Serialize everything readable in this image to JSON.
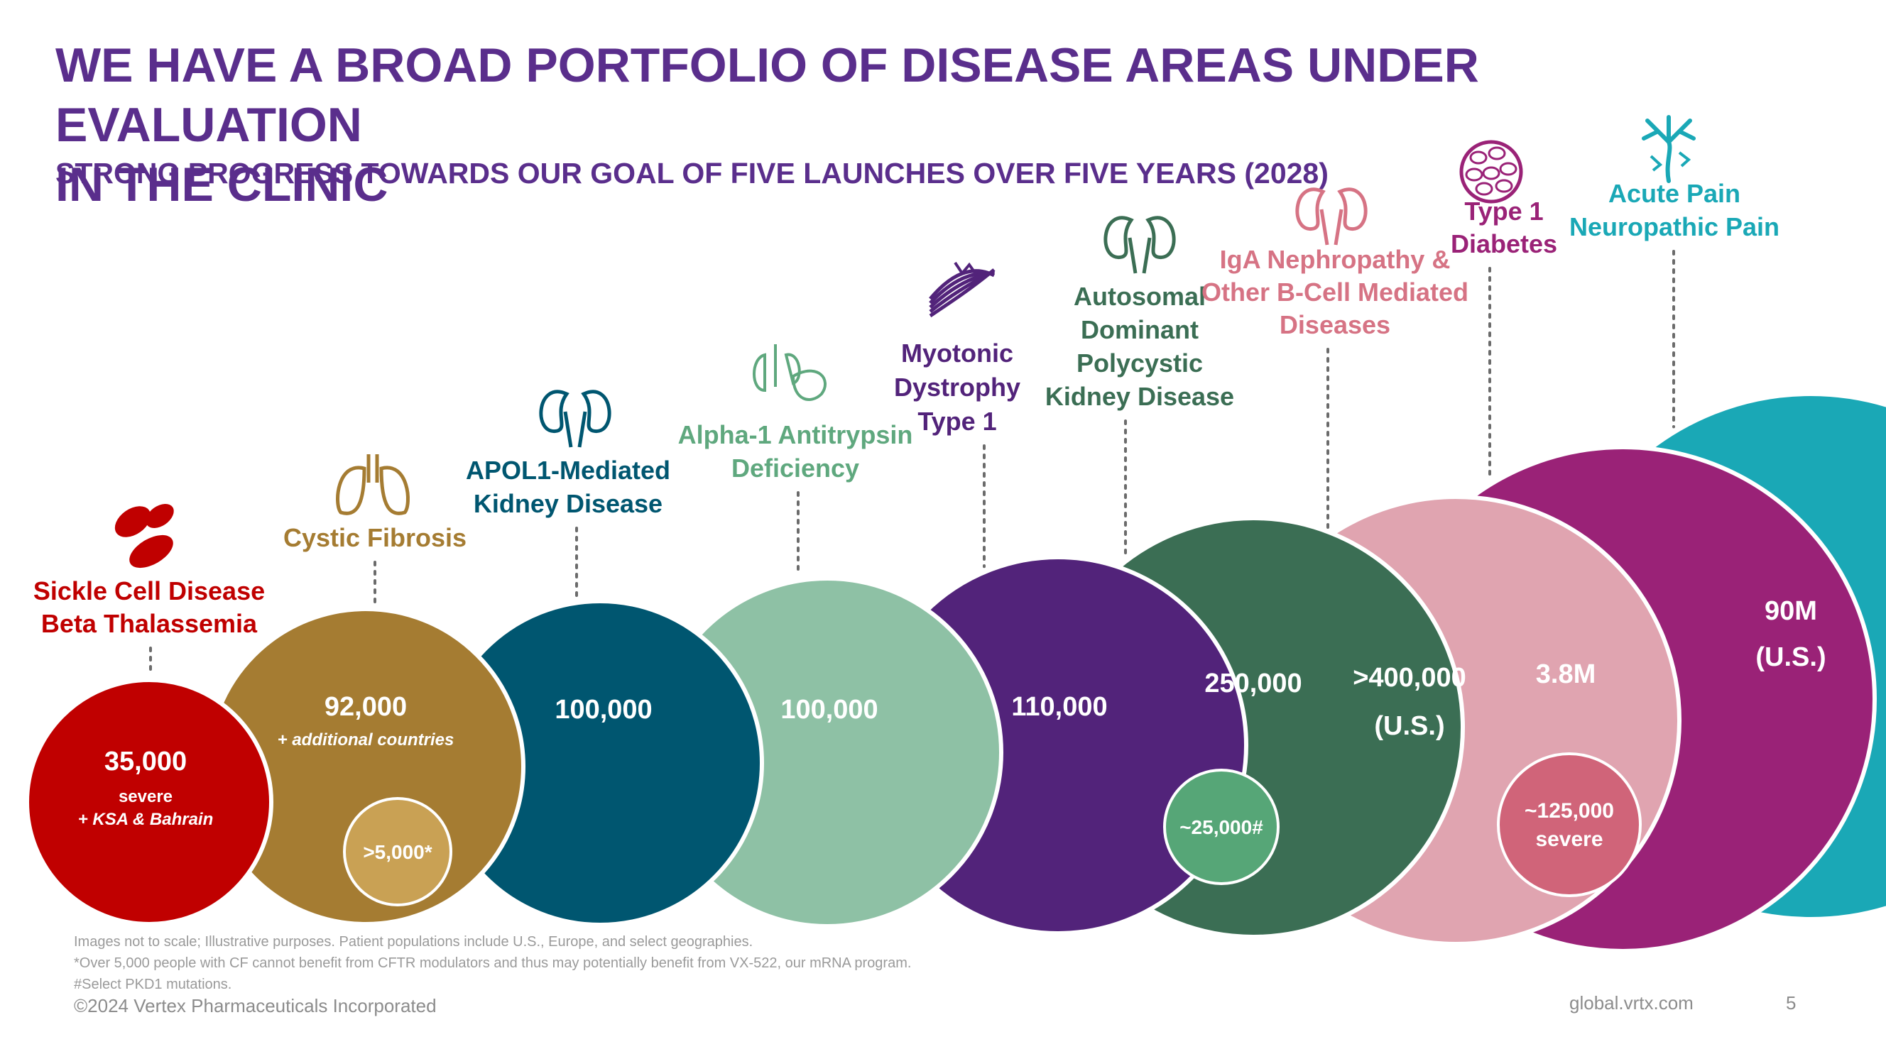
{
  "title_line1": "WE HAVE A BROAD PORTFOLIO OF DISEASE AREAS UNDER EVALUATION",
  "title_line2": "IN THE CLINIC",
  "subtitle": "STRONG PROGRESS TOWARDS OUR GOAL OF FIVE LAUNCHES OVER FIVE YEARS (2028)",
  "areas": [
    {
      "label": [
        "Sickle Cell Disease",
        "Beta Thalassemia"
      ],
      "value": "35,000",
      "note": [
        "severe",
        "+ KSA & Bahrain"
      ],
      "inner": "",
      "color": "#c00000",
      "label_color": "#c00000",
      "icon": "red-blood-cells-icon"
    },
    {
      "label": [
        "Cystic Fibrosis"
      ],
      "value": "92,000",
      "note": [
        "+ additional countries"
      ],
      "inner": ">5,000*",
      "color": "#a57c32",
      "label_color": "#a57c32",
      "icon": "lungs-icon"
    },
    {
      "label": [
        "APOL1-Mediated",
        "Kidney Disease"
      ],
      "value": "100,000",
      "note": [],
      "inner": "",
      "color": "#005670",
      "label_color": "#005670",
      "icon": "kidneys-icon"
    },
    {
      "label": [
        "Alpha-1 Antitrypsin",
        "Deficiency"
      ],
      "value": "100,000",
      "note": [],
      "inner": "",
      "color": "#8ec1a5",
      "label_color": "#5fa87e",
      "icon": "lungs-liver-icon"
    },
    {
      "label": [
        "Myotonic",
        "Dystrophy",
        "Type 1"
      ],
      "value": "110,000",
      "note": [],
      "inner": "",
      "color": "#52237a",
      "label_color": "#52237a",
      "icon": "muscle-icon"
    },
    {
      "label": [
        "Autosomal",
        "Dominant",
        "Polycystic",
        "Kidney Disease"
      ],
      "value": "250,000",
      "note": [],
      "inner": "~25,000#",
      "color": "#3b6e54",
      "label_color": "#3b6e54",
      "icon": "kidneys-icon"
    },
    {
      "label": [
        "IgA Nephropathy &",
        "Other B-Cell Mediated",
        "Diseases"
      ],
      "value": ">400,000",
      "note": [
        "(U.S.)"
      ],
      "inner": "",
      "color": "#e0a4b0",
      "label_color": "#d67384",
      "icon": "kidneys-icon"
    },
    {
      "label": [
        "Type 1",
        "Diabetes"
      ],
      "value": "3.8M",
      "note": [],
      "inner": "~125,000 severe",
      "color": "#9a2277",
      "label_color": "#9a2277",
      "icon": "pancreatic-cells-icon"
    },
    {
      "label": [
        "Acute Pain",
        "Neuropathic Pain"
      ],
      "value": "90M",
      "note": [
        "(U.S.)"
      ],
      "inner": "",
      "color": "#1aa8b6",
      "label_color": "#1aa8b6",
      "icon": "nerve-icon"
    }
  ],
  "footnotes": [
    "Images not to scale; Illustrative purposes. Patient populations include U.S., Europe, and select geographies.",
    "*Over 5,000 people with CF cannot benefit from CFTR modulators and thus may potentially benefit from VX-522, our mRNA program.",
    "#Select PKD1 mutations."
  ],
  "copyright": "©2024 Vertex Pharmaceuticals Incorporated",
  "website": "global.vrtx.com",
  "page_number": "5"
}
